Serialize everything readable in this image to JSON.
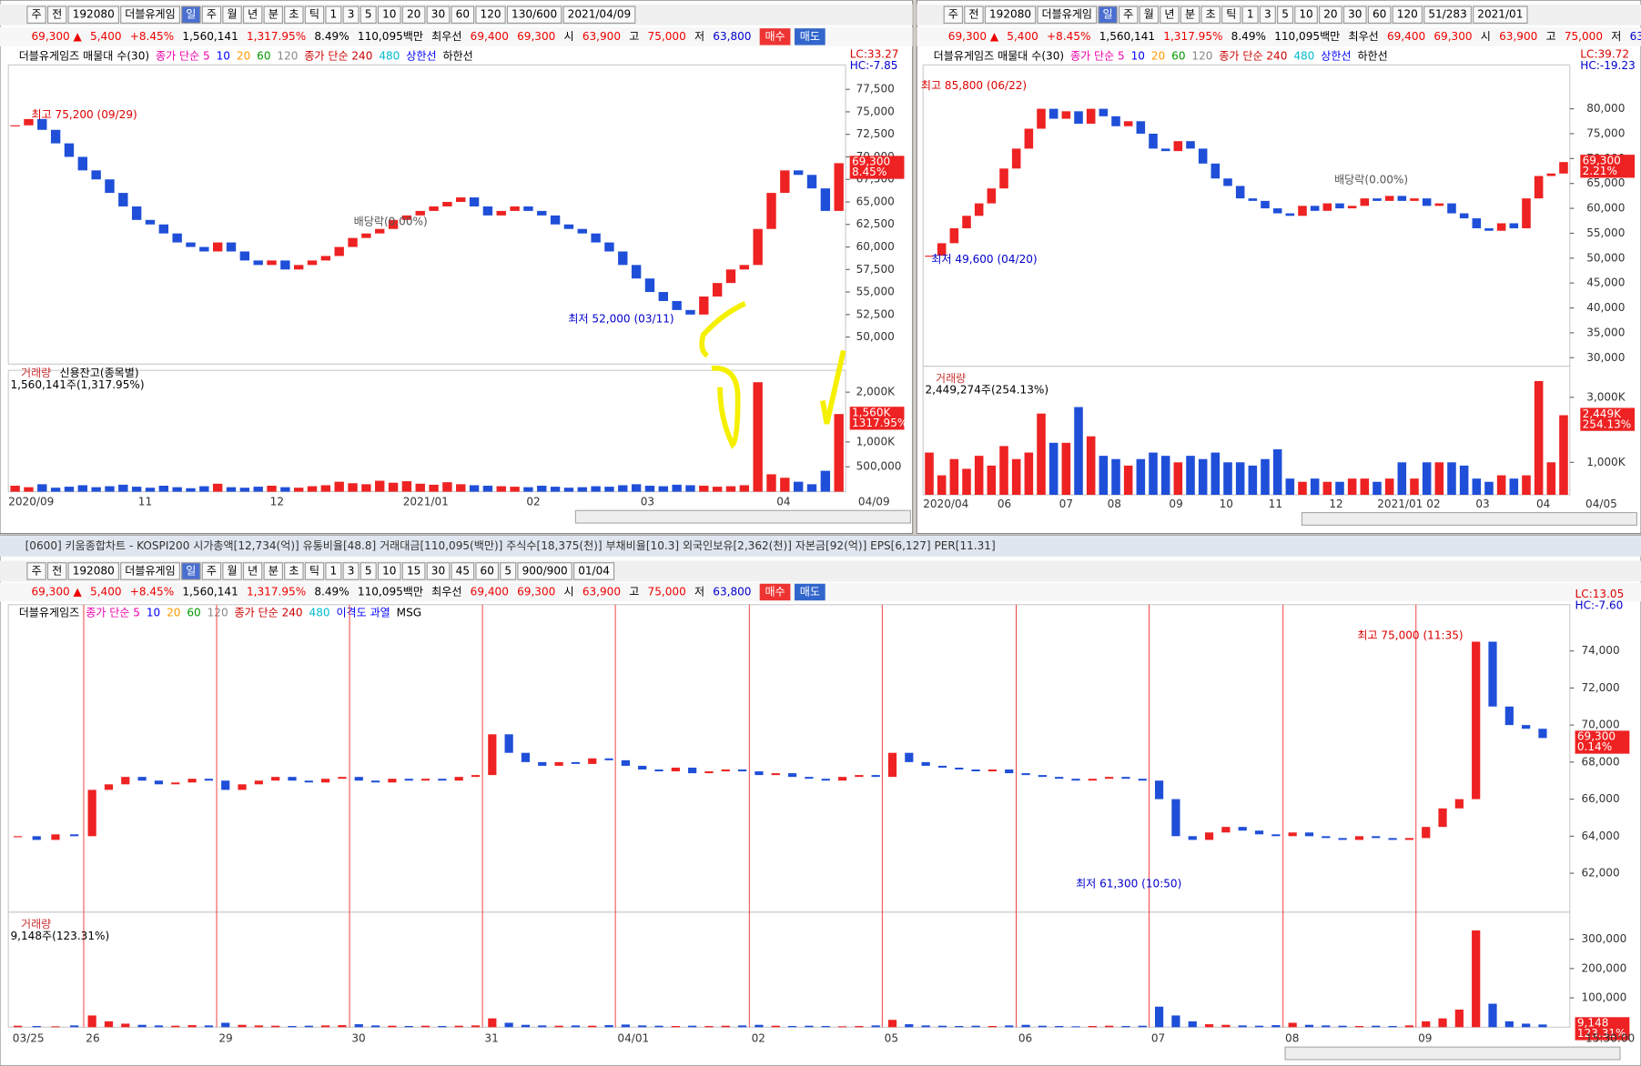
{
  "windows": [
    {
      "toolbar": [
        "주",
        "전",
        "192080",
        "더블유게임",
        "일",
        "주",
        "월",
        "년",
        "분",
        "초",
        "틱",
        "1",
        "3",
        "5",
        "10",
        "20",
        "30",
        "60",
        "120",
        "130/600",
        "2021/04/09"
      ],
      "info": [
        "69,300 ▲",
        "5,400",
        "+8.45%",
        "1,560,141",
        "1,317.95%",
        "8.49%",
        "110,095백만",
        "최우선",
        "69,400",
        "69,300",
        "시",
        "63,900",
        "고",
        "75,000",
        "저",
        "63,800",
        "매수",
        "매도"
      ],
      "legend": [
        "더블유게임즈 매물대 수(30)",
        "종가 단순 5",
        "10",
        "20",
        "60",
        "120",
        "종가 단순 240",
        "480",
        "상한선",
        "하한선"
      ],
      "side": [
        "LC:33.27",
        "HC:-7.85"
      ],
      "price": {
        "ylim": [
          47000,
          80200
        ],
        "yticks": [
          {
            "value": 50000,
            "label": "50,000"
          },
          {
            "value": 52500,
            "label": "52,500"
          },
          {
            "value": 55000,
            "label": "55,000"
          },
          {
            "value": 57500,
            "label": "57,500"
          },
          {
            "value": 60000,
            "label": "60,000"
          },
          {
            "value": 62500,
            "label": "62,500"
          },
          {
            "value": 65000,
            "label": "65,000"
          },
          {
            "value": 67500,
            "label": "67,500"
          },
          {
            "value": 70000,
            "label": "70,000"
          },
          {
            "value": 72500,
            "label": "72,500"
          },
          {
            "value": 75000,
            "label": "75,000"
          },
          {
            "value": 77500,
            "label": "77,500"
          }
        ],
        "closes": [
          73500,
          74200,
          73000,
          71500,
          70000,
          68500,
          67500,
          66000,
          64500,
          63000,
          62500,
          61500,
          60500,
          60000,
          59500,
          60500,
          59500,
          58500,
          58000,
          58500,
          57500,
          58000,
          58500,
          59000,
          60000,
          61000,
          61500,
          62000,
          63000,
          63500,
          64000,
          64500,
          65000,
          65500,
          64500,
          63500,
          64000,
          64500,
          64000,
          63500,
          62500,
          62000,
          61500,
          60500,
          59500,
          58000,
          56500,
          55000,
          54000,
          53000,
          52500,
          54500,
          56000,
          57500,
          58000,
          62000,
          66000,
          68500,
          68000,
          66500,
          64000,
          69300
        ],
        "last_label": "69,300",
        "change_label": "8.45%"
      },
      "annotations": [
        "최고 75,200 (09/29)",
        "최저 52,000 (03/11)",
        "배당락(0.00%)"
      ],
      "volume": {
        "title": "거래량",
        "extra": "신용잔고(종목별)",
        "summary": "1,560,141주(1,317.95%)",
        "ylim": [
          0,
          2270000
        ],
        "yticks": [
          {
            "value": 500000,
            "label": "500,000"
          },
          {
            "value": 1000000,
            "label": "1,000K"
          },
          {
            "value": 2000000,
            "label": "2,000K"
          }
        ],
        "values": [
          120000,
          90000,
          150000,
          80000,
          100000,
          130000,
          90000,
          110000,
          140000,
          100000,
          80000,
          120000,
          90000,
          70000,
          110000,
          160000,
          90000,
          80000,
          100000,
          120000,
          90000,
          80000,
          110000,
          130000,
          200000,
          170000,
          150000,
          220000,
          180000,
          210000,
          160000,
          140000,
          190000,
          150000,
          130000,
          120000,
          110000,
          100000,
          90000,
          120000,
          100000,
          80000,
          90000,
          110000,
          100000,
          130000,
          150000,
          120000,
          110000,
          140000,
          130000,
          120000,
          100000,
          110000,
          130000,
          2200000,
          350000,
          280000,
          200000,
          150000,
          420000,
          1560141
        ],
        "last_label": "1,560K",
        "pct_label": "1317.95%"
      },
      "xlabels": [
        "2020/09",
        "11",
        "12",
        "2021/01",
        "02",
        "03",
        "04"
      ],
      "end_label": "04/09"
    },
    {
      "toolbar": [
        "주",
        "전",
        "192080",
        "더블유게임",
        "일",
        "주",
        "월",
        "년",
        "분",
        "초",
        "틱",
        "1",
        "3",
        "5",
        "10",
        "20",
        "30",
        "60",
        "120",
        "51/283",
        "2021/01"
      ],
      "info": [
        "69,300 ▲",
        "5,400",
        "+8.45%",
        "1,560,141",
        "1,317.95%",
        "8.49%",
        "110,095백만",
        "최우선",
        "69,400",
        "69,300",
        "시",
        "63,900",
        "고",
        "75,000",
        "저",
        "63,800",
        "매수"
      ],
      "legend": [
        "더블유게임즈 매물대 수(30)",
        "종가 단순 5",
        "10",
        "20",
        "60",
        "120",
        "종가 단순 240",
        "480",
        "상한선",
        "하한선"
      ],
      "side": [
        "LC:39.72",
        "HC:-19.23"
      ],
      "price": {
        "ylim": [
          28300,
          88800
        ],
        "yticks": [
          {
            "value": 30000,
            "label": "30,000"
          },
          {
            "value": 35000,
            "label": "35,000"
          },
          {
            "value": 40000,
            "label": "40,000"
          },
          {
            "value": 45000,
            "label": "45,000"
          },
          {
            "value": 50000,
            "label": "50,000"
          },
          {
            "value": 55000,
            "label": "55,000"
          },
          {
            "value": 60000,
            "label": "60,000"
          },
          {
            "value": 65000,
            "label": "65,000"
          },
          {
            "value": 70000,
            "label": "70,000"
          },
          {
            "value": 75000,
            "label": "75,000"
          },
          {
            "value": 80000,
            "label": "80,000"
          }
        ],
        "closes": [
          50500,
          53000,
          56000,
          58500,
          61000,
          64000,
          68000,
          72000,
          76000,
          80000,
          78000,
          79500,
          77000,
          80000,
          78500,
          76500,
          77500,
          75000,
          72000,
          71500,
          73500,
          72000,
          69000,
          66000,
          64500,
          62000,
          61500,
          60000,
          59000,
          58500,
          60500,
          59500,
          61000,
          60000,
          60500,
          62000,
          61500,
          62500,
          61500,
          62000,
          60500,
          61000,
          59000,
          58000,
          56000,
          55500,
          57000,
          56000,
          62000,
          66500,
          67000,
          69300
        ],
        "last_label": "69,300",
        "change_label": "2.21%"
      },
      "annotations": [
        "최고 85,800 (06/22)",
        "최저 49,600 (04/20)",
        "배당락(0.00%)"
      ],
      "volume": {
        "title": "거래량",
        "summary": "2,449,274주(254.13%)",
        "ylim": [
          0,
          3700000
        ],
        "yticks": [
          {
            "value": 1000000,
            "label": "1,000K"
          },
          {
            "value": 3000000,
            "label": "3,000K"
          }
        ],
        "values": [
          1300000,
          600000,
          1100000,
          800000,
          1200000,
          900000,
          1500000,
          1100000,
          1300000,
          2500000,
          1600000,
          1600000,
          2700000,
          1800000,
          1200000,
          1100000,
          900000,
          1100000,
          1300000,
          1200000,
          1000000,
          1200000,
          1100000,
          1300000,
          1000000,
          1000000,
          900000,
          1100000,
          1400000,
          500000,
          400000,
          500000,
          400000,
          400000,
          500000,
          500000,
          400000,
          500000,
          1000000,
          500000,
          1000000,
          1000000,
          1000000,
          900000,
          500000,
          400000,
          600000,
          500000,
          600000,
          3500000,
          1000000,
          2449274
        ],
        "last_label": "2,449K",
        "pct_label": "254.13%"
      },
      "xlabels": [
        "2020/04",
        "06",
        "07",
        "08",
        "09",
        "10",
        "11",
        "12",
        "2021/01",
        "02",
        "03",
        "04"
      ],
      "end_label": "04/05"
    },
    {
      "title": "[0600] 키움종합차트 - KOSPI200 시가총액[12,734(억)] 유통비율[48.8] 거래대금[110,095(백만)] 주식수[18,375(천)] 부채비율[10.3] 외국인보유[2,362(천)] 자본금[92(억)] EPS[6,127] PER[11.31]",
      "toolbar": [
        "주",
        "전",
        "192080",
        "더블유게임",
        "일",
        "주",
        "월",
        "년",
        "분",
        "초",
        "틱",
        "1",
        "3",
        "5",
        "10",
        "15",
        "30",
        "45",
        "60",
        "5",
        "900/900",
        "01/04"
      ],
      "info": [
        "69,300 ▲",
        "5,400",
        "+8.45%",
        "1,560,141",
        "1,317.95%",
        "8.49%",
        "110,095백만",
        "최우선",
        "69,400",
        "69,300",
        "시",
        "63,900",
        "고",
        "75,000",
        "저",
        "63,800",
        "매수",
        "매도"
      ],
      "legend": [
        "더블유게임즈",
        "종가 단순 5",
        "10",
        "20",
        "60",
        "120",
        "종가 단순 240",
        "480",
        "이격도 과열",
        "MSG"
      ],
      "side": [
        "LC:13.05",
        "HC:-7.60"
      ],
      "price": {
        "ylim": [
          59900,
          76500
        ],
        "yticks": [
          {
            "value": 62000,
            "label": "62,000"
          },
          {
            "value": 64000,
            "label": "64,000"
          },
          {
            "value": 66000,
            "label": "66,000"
          },
          {
            "value": 68000,
            "label": "68,000"
          },
          {
            "value": 70000,
            "label": "70,000"
          },
          {
            "value": 72000,
            "label": "72,000"
          },
          {
            "value": 74000,
            "label": "74,000"
          }
        ],
        "closes": [
          64000,
          63800,
          64100,
          64000,
          66500,
          66800,
          67200,
          67000,
          66800,
          66900,
          67100,
          67000,
          66500,
          66800,
          67000,
          67200,
          67000,
          66900,
          67100,
          67200,
          67000,
          66900,
          67100,
          67000,
          67100,
          67000,
          67200,
          67300,
          69500,
          68500,
          68000,
          67800,
          68000,
          67900,
          68200,
          68100,
          67800,
          67600,
          67500,
          67700,
          67400,
          67500,
          67600,
          67500,
          67300,
          67400,
          67200,
          67100,
          67000,
          67200,
          67300,
          67200,
          68500,
          68000,
          67800,
          67700,
          67600,
          67500,
          67600,
          67400,
          67300,
          67200,
          67100,
          67000,
          67100,
          67200,
          67100,
          67000,
          66000,
          64000,
          63800,
          64200,
          64500,
          64300,
          64100,
          64000,
          64200,
          64000,
          63900,
          63800,
          64000,
          63900,
          63800,
          63900,
          64500,
          65500,
          66000,
          74500,
          71000,
          70000,
          69800,
          69300
        ],
        "last_label": "69,300",
        "change_label": "0.14%"
      },
      "annotations": [
        "최고 75,000 (11:35)",
        "최저 61,300 (10:50)"
      ],
      "volume": {
        "title": "거래량",
        "summary": "9,148주(123.31%)",
        "ylim": [
          0,
          364000
        ],
        "yticks": [
          {
            "value": 100000,
            "label": "100,000"
          },
          {
            "value": 200000,
            "label": "200,000"
          },
          {
            "value": 300000,
            "label": "300,000"
          }
        ],
        "values": [
          5000,
          4000,
          3000,
          6000,
          40000,
          20000,
          12000,
          8000,
          6000,
          5000,
          7000,
          6000,
          15000,
          8000,
          6000,
          5000,
          4000,
          5000,
          6000,
          7000,
          10000,
          6000,
          5000,
          4000,
          5000,
          4000,
          5000,
          6000,
          30000,
          15000,
          8000,
          6000,
          5000,
          6000,
          5000,
          7000,
          9000,
          6000,
          5000,
          4000,
          5000,
          4000,
          5000,
          6000,
          8000,
          5000,
          4000,
          5000,
          4000,
          3000,
          4000,
          6000,
          25000,
          10000,
          6000,
          5000,
          4000,
          5000,
          4000,
          6000,
          8000,
          5000,
          4000,
          3000,
          4000,
          5000,
          4000,
          5000,
          70000,
          40000,
          20000,
          10000,
          8000,
          6000,
          5000,
          7000,
          15000,
          8000,
          6000,
          5000,
          4000,
          5000,
          4000,
          6000,
          20000,
          30000,
          60000,
          330000,
          80000,
          20000,
          12000,
          9148
        ],
        "last_label": "9,148",
        "pct_label": "123.31%"
      },
      "xlabels": [
        "03/25",
        "26",
        "29",
        "30",
        "31",
        "04/01",
        "02",
        "05",
        "06",
        "07",
        "08",
        "09"
      ],
      "end_label": "15:30:00"
    }
  ]
}
